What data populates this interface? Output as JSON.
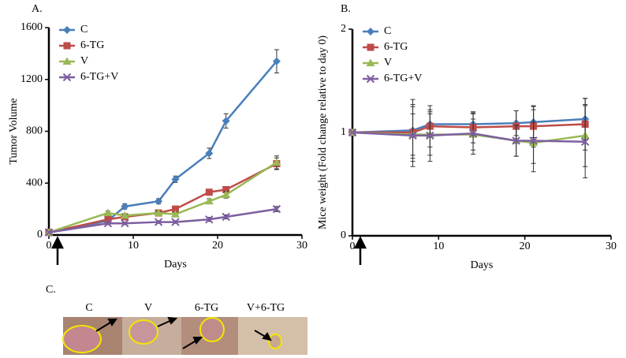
{
  "chart_data": [
    {
      "type": "line",
      "label": "A.",
      "ylabel": "Tumor  Volume",
      "xlabel": "Days",
      "x": [
        0,
        7,
        9,
        13,
        15,
        19,
        21,
        27
      ],
      "xlim": [
        0,
        30
      ],
      "xticks": [
        0,
        10,
        20,
        30
      ],
      "ylim": [
        0,
        1600
      ],
      "yticks": [
        0,
        400,
        800,
        1200,
        1600
      ],
      "series": [
        {
          "name": "C",
          "color": "#4a7ebb",
          "marker": "diamond",
          "values": [
            20,
            110,
            220,
            260,
            430,
            630,
            880,
            1340
          ],
          "errors": [
            0,
            20,
            20,
            20,
            25,
            40,
            55,
            90
          ]
        },
        {
          "name": "6-TG",
          "color": "#be4b48",
          "marker": "square",
          "values": [
            20,
            120,
            140,
            170,
            200,
            330,
            350,
            550
          ],
          "errors": [
            0,
            10,
            10,
            15,
            15,
            20,
            20,
            45
          ]
        },
        {
          "name": "V",
          "color": "#98b954",
          "marker": "triangle",
          "values": [
            20,
            170,
            150,
            170,
            160,
            260,
            310,
            560
          ],
          "errors": [
            0,
            15,
            10,
            10,
            15,
            20,
            25,
            50
          ]
        },
        {
          "name": "6-TG+V",
          "color": "#7d5fa0",
          "marker": "cross",
          "values": [
            20,
            90,
            90,
            100,
            100,
            120,
            140,
            200
          ],
          "errors": [
            0,
            10,
            10,
            10,
            10,
            15,
            15,
            20
          ]
        }
      ]
    },
    {
      "type": "line",
      "label": "B.",
      "ylabel": "Mice weight (Fold change relative to day 0)",
      "xlabel": "Days",
      "x": [
        0,
        7,
        9,
        14,
        19,
        21,
        27
      ],
      "xlim": [
        0,
        30
      ],
      "xticks": [
        0,
        10,
        20,
        30
      ],
      "ylim": [
        0,
        2
      ],
      "yticks": [
        0,
        1,
        2
      ],
      "series": [
        {
          "name": "C",
          "color": "#4a7ebb",
          "marker": "diamond",
          "values": [
            1,
            1.02,
            1.08,
            1.08,
            1.09,
            1.1,
            1.13
          ],
          "errors": [
            0,
            0.3,
            0.12,
            0.1,
            0.12,
            0.15,
            0.2
          ]
        },
        {
          "name": "6-TG",
          "color": "#be4b48",
          "marker": "square",
          "values": [
            1,
            1.0,
            1.06,
            1.05,
            1.06,
            1.06,
            1.08
          ],
          "errors": [
            0,
            0.25,
            0.2,
            0.15,
            0.15,
            0.2,
            0.25
          ]
        },
        {
          "name": "V",
          "color": "#98b954",
          "marker": "triangle",
          "values": [
            1,
            0.98,
            0.98,
            0.98,
            0.92,
            0.9,
            0.97
          ],
          "errors": [
            0,
            0.2,
            0.2,
            0.15,
            0.15,
            0.2,
            0.3
          ]
        },
        {
          "name": "6-TG+V",
          "color": "#7d5fa0",
          "marker": "cross",
          "values": [
            1,
            0.97,
            0.97,
            0.99,
            0.92,
            0.92,
            0.91
          ],
          "errors": [
            0,
            0.3,
            0.25,
            0.2,
            0.15,
            0.3,
            0.35
          ]
        }
      ]
    }
  ],
  "photo": {
    "label": "C.",
    "captions": [
      "C",
      "V",
      "6-TG",
      "V+6-TG"
    ]
  }
}
